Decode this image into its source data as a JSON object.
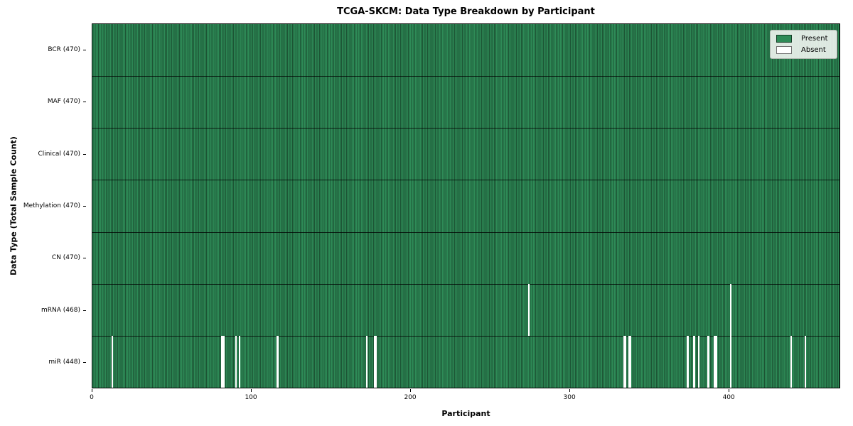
{
  "chart_data": {
    "type": "heatmap",
    "title": "TCGA-SKCM: Data Type Breakdown by Participant",
    "xlabel": "Participant",
    "ylabel": "Data Type (Total Sample Count)",
    "x_ticks": [
      0,
      100,
      200,
      300,
      400
    ],
    "x_range": [
      0,
      470
    ],
    "n_participants": 470,
    "grid": false,
    "legend_position": "upper right",
    "legend": [
      {
        "label": "Present",
        "color": "#2e8b57"
      },
      {
        "label": "Absent",
        "color": "#ffffff"
      }
    ],
    "colors": {
      "present": "#2e8b57",
      "present_edge": "#1c5434",
      "absent": "#ffffff",
      "row_separator": "rgba(0,0,0,0.75)"
    },
    "rows": [
      {
        "data_type": "BCR",
        "label": "BCR (470)",
        "present_count": 470,
        "absent_participants": []
      },
      {
        "data_type": "MAF",
        "label": "MAF (470)",
        "present_count": 470,
        "absent_participants": []
      },
      {
        "data_type": "Clinical",
        "label": "Clinical (470)",
        "present_count": 470,
        "absent_participants": []
      },
      {
        "data_type": "Methylation",
        "label": "Methylation (470)",
        "present_count": 470,
        "absent_participants": []
      },
      {
        "data_type": "CN",
        "label": "CN (470)",
        "present_count": 470,
        "absent_participants": []
      },
      {
        "data_type": "mRNA",
        "label": "mRNA (468)",
        "present_count": 468,
        "absent_participants": [
          274,
          401
        ]
      },
      {
        "data_type": "miR",
        "label": "miR (448)",
        "present_count": 448,
        "absent_participants": [
          12,
          81,
          82,
          90,
          92,
          116,
          172,
          177,
          178,
          334,
          335,
          337,
          338,
          374,
          378,
          381,
          387,
          391,
          392,
          401,
          439,
          448
        ]
      }
    ]
  }
}
